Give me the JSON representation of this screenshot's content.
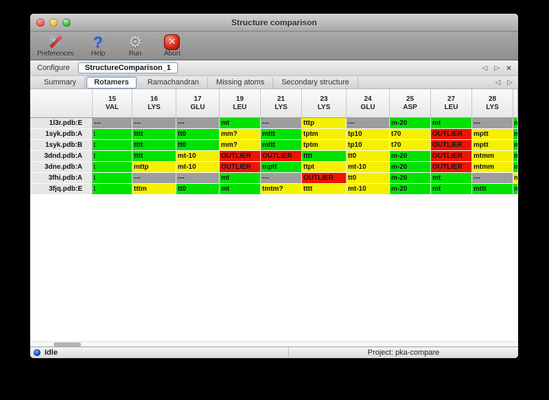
{
  "window": {
    "title": "Structure comparison"
  },
  "toolbar": {
    "items": [
      {
        "label": "Preferences",
        "icon": "tools-icon"
      },
      {
        "label": "Help",
        "icon": "question-icon"
      },
      {
        "label": "Run",
        "icon": "gear-icon"
      },
      {
        "label": "Abort",
        "icon": "stop-icon"
      }
    ],
    "gear_glyph": "⚙",
    "abort_glyph": "✕",
    "help_glyph": "?"
  },
  "configure": {
    "label": "Configure",
    "value": "StructureComparison_1",
    "nav_back": "◁",
    "nav_forward": "▷",
    "nav_close": "×"
  },
  "tabs": {
    "items": [
      "Summary",
      "Rotamers",
      "Ramachandran",
      "Missing atoms",
      "Secondary structure"
    ],
    "active": "Rotamers",
    "nav_back": "◁",
    "nav_forward": "▷"
  },
  "colors": {
    "ok": "#00e300",
    "diff": "#f6ef00",
    "outlier": "#ee1500",
    "missing": "#9d9d9d"
  },
  "table": {
    "columns": [
      {
        "num": "15",
        "res": "VAL"
      },
      {
        "num": "16",
        "res": "LYS"
      },
      {
        "num": "17",
        "res": "GLU"
      },
      {
        "num": "19",
        "res": "LEU"
      },
      {
        "num": "21",
        "res": "LYS"
      },
      {
        "num": "23",
        "res": "LYS"
      },
      {
        "num": "24",
        "res": "GLU"
      },
      {
        "num": "25",
        "res": "ASP"
      },
      {
        "num": "27",
        "res": "LEU"
      },
      {
        "num": "28",
        "res": "LYS"
      }
    ],
    "rows": [
      {
        "label": "1l3r.pdb:E",
        "cells": [
          {
            "text": "---",
            "status": "missing"
          },
          {
            "text": "---",
            "status": "missing"
          },
          {
            "text": "---",
            "status": "missing"
          },
          {
            "text": "mt",
            "status": "ok"
          },
          {
            "text": "---",
            "status": "missing"
          },
          {
            "text": "tttp",
            "status": "diff"
          },
          {
            "text": "---",
            "status": "missing"
          },
          {
            "text": "m-20",
            "status": "ok"
          },
          {
            "text": "mt",
            "status": "ok"
          },
          {
            "text": "---",
            "status": "missing"
          }
        ],
        "edge": {
          "text": "m",
          "status": "ok"
        }
      },
      {
        "label": "1syk.pdb:A",
        "cells": [
          {
            "text": "t",
            "status": "ok",
            "clip": true
          },
          {
            "text": "tttt",
            "status": "ok"
          },
          {
            "text": "tt0",
            "status": "ok"
          },
          {
            "text": "mm?",
            "status": "diff"
          },
          {
            "text": "mttt",
            "status": "ok"
          },
          {
            "text": "tptm",
            "status": "diff"
          },
          {
            "text": "tp10",
            "status": "diff"
          },
          {
            "text": "t70",
            "status": "diff"
          },
          {
            "text": "OUTLIER",
            "status": "outlier"
          },
          {
            "text": "mptt",
            "status": "diff"
          }
        ],
        "edge": {
          "text": "m",
          "status": "ok"
        }
      },
      {
        "label": "1syk.pdb:B",
        "cells": [
          {
            "text": "t",
            "status": "ok",
            "clip": true
          },
          {
            "text": "tttt",
            "status": "ok"
          },
          {
            "text": "tt0",
            "status": "ok"
          },
          {
            "text": "mm?",
            "status": "diff"
          },
          {
            "text": "mttt",
            "status": "ok"
          },
          {
            "text": "tptm",
            "status": "diff"
          },
          {
            "text": "tp10",
            "status": "diff"
          },
          {
            "text": "t70",
            "status": "diff"
          },
          {
            "text": "OUTLIER",
            "status": "outlier"
          },
          {
            "text": "mptt",
            "status": "diff"
          }
        ],
        "edge": {
          "text": "m",
          "status": "ok"
        }
      },
      {
        "label": "3dnd.pdb:A",
        "cells": [
          {
            "text": "t",
            "status": "ok",
            "clip": true
          },
          {
            "text": "tttt",
            "status": "ok"
          },
          {
            "text": "mt-10",
            "status": "diff"
          },
          {
            "text": "OUTLIER",
            "status": "outlier"
          },
          {
            "text": "OUTLIER",
            "status": "outlier"
          },
          {
            "text": "tttt",
            "status": "ok"
          },
          {
            "text": "tt0",
            "status": "diff"
          },
          {
            "text": "m-20",
            "status": "ok"
          },
          {
            "text": "OUTLIER",
            "status": "outlier"
          },
          {
            "text": "mtmm",
            "status": "diff"
          }
        ],
        "edge": {
          "text": "m",
          "status": "ok"
        }
      },
      {
        "label": "3dne.pdb:A",
        "cells": [
          {
            "text": "t",
            "status": "ok",
            "clip": true
          },
          {
            "text": "mttp",
            "status": "diff"
          },
          {
            "text": "mt-10",
            "status": "diff"
          },
          {
            "text": "OUTLIER",
            "status": "outlier"
          },
          {
            "text": "mptt",
            "status": "ok"
          },
          {
            "text": "ttpt",
            "status": "diff"
          },
          {
            "text": "mt-10",
            "status": "diff"
          },
          {
            "text": "m-20",
            "status": "ok"
          },
          {
            "text": "OUTLIER",
            "status": "outlier"
          },
          {
            "text": "mtmm",
            "status": "diff"
          }
        ],
        "edge": {
          "text": "m",
          "status": "ok"
        }
      },
      {
        "label": "3fhi.pdb:A",
        "cells": [
          {
            "text": "t",
            "status": "ok",
            "clip": true
          },
          {
            "text": "---",
            "status": "missing"
          },
          {
            "text": "---",
            "status": "missing"
          },
          {
            "text": "mt",
            "status": "ok"
          },
          {
            "text": "---",
            "status": "missing"
          },
          {
            "text": "OUTLIER",
            "status": "outlier"
          },
          {
            "text": "tt0",
            "status": "diff"
          },
          {
            "text": "m-20",
            "status": "ok"
          },
          {
            "text": "mt",
            "status": "ok"
          },
          {
            "text": "---",
            "status": "missing"
          }
        ],
        "edge": {
          "text": "m",
          "status": "diff"
        }
      },
      {
        "label": "3fjq.pdb:E",
        "cells": [
          {
            "text": "t",
            "status": "ok",
            "clip": true
          },
          {
            "text": "tttm",
            "status": "diff"
          },
          {
            "text": "tt0",
            "status": "ok"
          },
          {
            "text": "mt",
            "status": "ok"
          },
          {
            "text": "tmtm?",
            "status": "diff"
          },
          {
            "text": "tttt",
            "status": "diff"
          },
          {
            "text": "mt-10",
            "status": "diff"
          },
          {
            "text": "m-20",
            "status": "ok"
          },
          {
            "text": "mt",
            "status": "ok"
          },
          {
            "text": "mttt",
            "status": "ok"
          }
        ],
        "edge": {
          "text": "m",
          "status": "ok"
        }
      }
    ]
  },
  "statusbar": {
    "state": "Idle",
    "project": "Project: pka-compare"
  }
}
